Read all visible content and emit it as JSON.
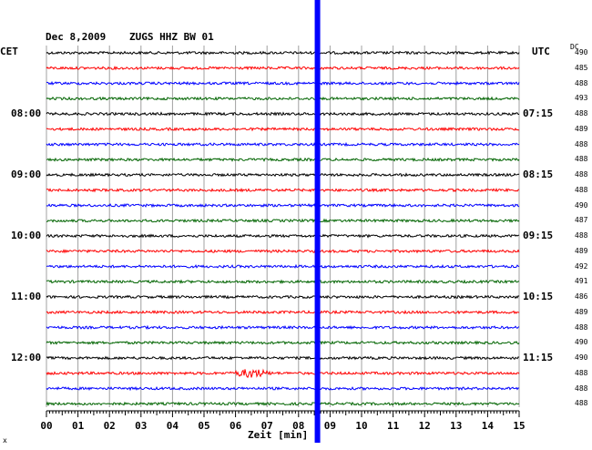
{
  "header": {
    "date": "Dec 8,2009",
    "station": "ZUGS HHZ BW 01",
    "left_zone": "CET",
    "right_zone": "UTC",
    "dc_header": "DC"
  },
  "xaxis_label": "Zeit [min]",
  "corner_mark": "x",
  "colors": {
    "trace_cycle": [
      "#000000",
      "#ff0000",
      "#0000ff",
      "#006400"
    ],
    "grid": "#a0a0a0",
    "marker": "#0000ff"
  },
  "chart_data": {
    "type": "line",
    "title": "Dec 8,2009  ZUGS HHZ BW 01",
    "xlabel": "Zeit [min]",
    "xlim": [
      0,
      15
    ],
    "x_ticks": [
      "00",
      "01",
      "02",
      "03",
      "04",
      "05",
      "06",
      "07",
      "08",
      "09",
      "10",
      "11",
      "12",
      "13",
      "14",
      "15"
    ],
    "rows": 24,
    "cet_labels": [
      {
        "row": 4,
        "text": "08:00"
      },
      {
        "row": 8,
        "text": "09:00"
      },
      {
        "row": 12,
        "text": "10:00"
      },
      {
        "row": 16,
        "text": "11:00"
      },
      {
        "row": 20,
        "text": "12:00"
      }
    ],
    "utc_labels": [
      {
        "row": 4,
        "text": "07:15"
      },
      {
        "row": 8,
        "text": "08:15"
      },
      {
        "row": 12,
        "text": "09:15"
      },
      {
        "row": 16,
        "text": "10:15"
      },
      {
        "row": 20,
        "text": "11:15"
      }
    ],
    "dc_offsets": [
      "490",
      "485",
      "488",
      "493",
      "488",
      "489",
      "488",
      "488",
      "488",
      "488",
      "490",
      "487",
      "488",
      "489",
      "492",
      "491",
      "486",
      "489",
      "488",
      "490",
      "490",
      "488",
      "488",
      "488"
    ],
    "marker_minute": 8.6,
    "events": [
      {
        "row": 21,
        "minute_start": 5.8,
        "minute_end": 7.2,
        "peak_minute": 6.5
      }
    ]
  }
}
